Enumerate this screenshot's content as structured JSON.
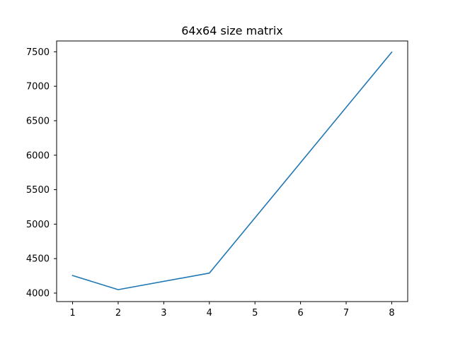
{
  "chart_data": {
    "type": "line",
    "title": "64x64 size matrix",
    "xlabel": "",
    "ylabel": "",
    "x": [
      1,
      2,
      4,
      8
    ],
    "series": [
      {
        "values": [
          4255,
          4050,
          4290,
          7495
        ],
        "color": "#1f77b4"
      }
    ],
    "xlim": [
      0.65,
      8.35
    ],
    "ylim": [
      3877,
      7657
    ],
    "xticks": [
      1,
      2,
      3,
      4,
      5,
      6,
      7,
      8
    ],
    "yticks": [
      4000,
      4500,
      5000,
      5500,
      6000,
      6500,
      7000,
      7500
    ],
    "xtick_labels": [
      "1",
      "2",
      "3",
      "4",
      "5",
      "6",
      "7",
      "8"
    ],
    "ytick_labels": [
      "4000",
      "4500",
      "5000",
      "5500",
      "6000",
      "6500",
      "7000",
      "7500"
    ],
    "grid": false,
    "legend": "none"
  }
}
